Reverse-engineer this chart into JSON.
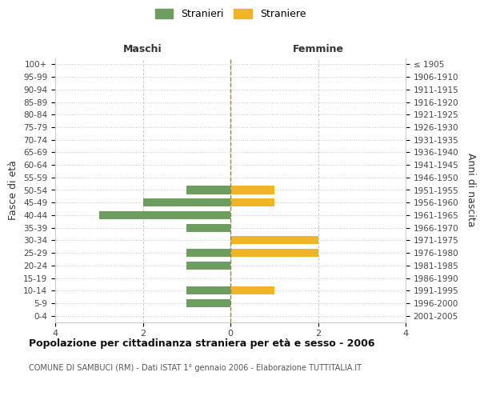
{
  "age_groups": [
    "0-4",
    "5-9",
    "10-14",
    "15-19",
    "20-24",
    "25-29",
    "30-34",
    "35-39",
    "40-44",
    "45-49",
    "50-54",
    "55-59",
    "60-64",
    "65-69",
    "70-74",
    "75-79",
    "80-84",
    "85-89",
    "90-94",
    "95-99",
    "100+"
  ],
  "birth_years": [
    "2001-2005",
    "1996-2000",
    "1991-1995",
    "1986-1990",
    "1981-1985",
    "1976-1980",
    "1971-1975",
    "1966-1970",
    "1961-1965",
    "1956-1960",
    "1951-1955",
    "1946-1950",
    "1941-1945",
    "1936-1940",
    "1931-1935",
    "1926-1930",
    "1921-1925",
    "1916-1920",
    "1911-1915",
    "1906-1910",
    "≤ 1905"
  ],
  "maschi": [
    0,
    1,
    1,
    0,
    1,
    1,
    0,
    1,
    3,
    2,
    1,
    0,
    0,
    0,
    0,
    0,
    0,
    0,
    0,
    0,
    0
  ],
  "femmine": [
    0,
    0,
    1,
    0,
    0,
    2,
    2,
    0,
    0,
    1,
    1,
    0,
    0,
    0,
    0,
    0,
    0,
    0,
    0,
    0,
    0
  ],
  "maschi_color": "#6e9e5f",
  "femmine_color": "#f0b429",
  "background_color": "#ffffff",
  "grid_color": "#cccccc",
  "title": "Popolazione per cittadinanza straniera per età e sesso - 2006",
  "subtitle": "COMUNE DI SAMBUCI (RM) - Dati ISTAT 1° gennaio 2006 - Elaborazione TUTTITALIA.IT",
  "maschi_label": "Stranieri",
  "femmine_label": "Straniere",
  "col_left": "Maschi",
  "col_right": "Femmine",
  "ylabel_left": "Fasce di età",
  "ylabel_right": "Anni di nascita",
  "xlim": 4
}
